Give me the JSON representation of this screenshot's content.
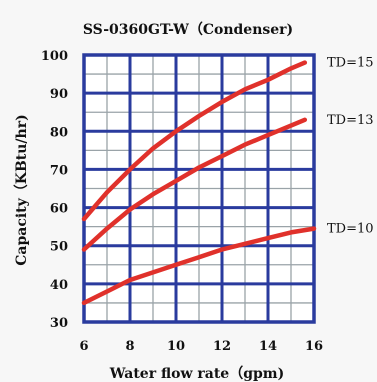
{
  "chart_data": {
    "type": "line",
    "title": "SS-0360GT-W（Condenser)",
    "xlabel": "Water flow rate（gpm)",
    "ylabel": "Capacity（KBtu/hr)",
    "xlim": [
      6,
      16
    ],
    "ylim": [
      30,
      100
    ],
    "x_ticks": [
      6,
      8,
      10,
      12,
      14,
      16
    ],
    "y_ticks": [
      30,
      40,
      50,
      60,
      70,
      80,
      90,
      100
    ],
    "grid": true,
    "colors": {
      "major_grid": "#2a3b9e",
      "minor_grid": "#9aa3a8",
      "series": "#e0312b",
      "background": "#ffffff"
    },
    "series": [
      {
        "name": "TD=15",
        "x": [
          6,
          7,
          8,
          9,
          10,
          11,
          12,
          13,
          14,
          15,
          15.6
        ],
        "y": [
          57,
          64,
          70,
          75.5,
          80,
          84,
          87.7,
          91,
          93.5,
          96.5,
          98
        ]
      },
      {
        "name": "TD=13",
        "x": [
          6,
          7,
          8,
          9,
          10,
          11,
          12,
          13,
          14,
          15,
          15.6
        ],
        "y": [
          49,
          54.5,
          59.5,
          63.5,
          67,
          70.5,
          73.5,
          76.5,
          79,
          81.5,
          83
        ]
      },
      {
        "name": "TD=10",
        "x": [
          6,
          7,
          8,
          9,
          10,
          11,
          12,
          13,
          14,
          15,
          16
        ],
        "y": [
          35,
          38,
          41,
          43,
          45,
          47,
          49,
          50.5,
          52,
          53.5,
          54.5
        ]
      }
    ]
  }
}
